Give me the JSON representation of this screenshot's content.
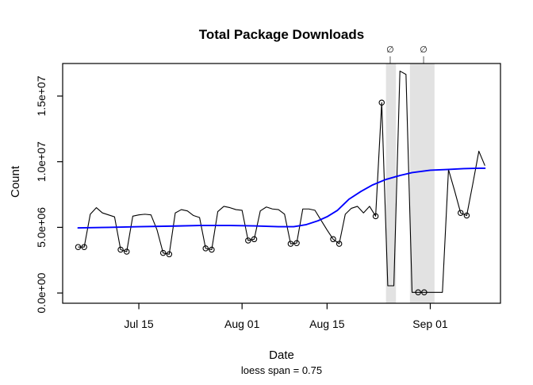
{
  "chart_data": {
    "type": "line",
    "title": "Total Package Downloads",
    "xlabel": "Date",
    "ylabel": "Count",
    "subtitle": "loess span = 0.75",
    "grid": false,
    "legend": "none",
    "x_tick_labels": [
      "Jul 15",
      "Aug 01",
      "Aug 15",
      "Sep 01"
    ],
    "x_tick_day_index": [
      10,
      27,
      41,
      58
    ],
    "y_ticks": [
      0,
      5000000,
      10000000,
      15000000
    ],
    "y_tick_labels": [
      "0.0e+00",
      "5.0e+06",
      "1.0e+07",
      "1.5e+07"
    ],
    "ylim": [
      0,
      17500000
    ],
    "points_columns": [
      "date",
      "value",
      "circled"
    ],
    "points": [
      [
        "Jul 05",
        3500000,
        true
      ],
      [
        "Jul 06",
        3500000,
        true
      ],
      [
        "Jul 07",
        6000000,
        false
      ],
      [
        "Jul 08",
        6500000,
        false
      ],
      [
        "Jul 09",
        6100000,
        false
      ],
      [
        "Jul 10",
        5950000,
        false
      ],
      [
        "Jul 11",
        5800000,
        false
      ],
      [
        "Jul 12",
        3300000,
        true
      ],
      [
        "Jul 13",
        3150000,
        true
      ],
      [
        "Jul 14",
        5850000,
        false
      ],
      [
        "Jul 15",
        5950000,
        false
      ],
      [
        "Jul 16",
        6000000,
        false
      ],
      [
        "Jul 17",
        5950000,
        false
      ],
      [
        "Jul 18",
        4800000,
        false
      ],
      [
        "Jul 19",
        3050000,
        true
      ],
      [
        "Jul 20",
        2950000,
        true
      ],
      [
        "Jul 21",
        6100000,
        false
      ],
      [
        "Jul 22",
        6350000,
        false
      ],
      [
        "Jul 23",
        6250000,
        false
      ],
      [
        "Jul 24",
        5900000,
        false
      ],
      [
        "Jul 25",
        5750000,
        false
      ],
      [
        "Jul 26",
        3400000,
        true
      ],
      [
        "Jul 27",
        3300000,
        true
      ],
      [
        "Jul 28",
        6200000,
        false
      ],
      [
        "Jul 29",
        6600000,
        false
      ],
      [
        "Jul 30",
        6500000,
        false
      ],
      [
        "Jul 31",
        6350000,
        false
      ],
      [
        "Aug 01",
        6300000,
        false
      ],
      [
        "Aug 02",
        4000000,
        true
      ],
      [
        "Aug 03",
        4100000,
        true
      ],
      [
        "Aug 04",
        6250000,
        false
      ],
      [
        "Aug 05",
        6550000,
        false
      ],
      [
        "Aug 06",
        6400000,
        false
      ],
      [
        "Aug 07",
        6350000,
        false
      ],
      [
        "Aug 08",
        6000000,
        false
      ],
      [
        "Aug 09",
        3750000,
        true
      ],
      [
        "Aug 10",
        3800000,
        true
      ],
      [
        "Aug 11",
        6400000,
        false
      ],
      [
        "Aug 12",
        6400000,
        false
      ],
      [
        "Aug 13",
        6300000,
        false
      ],
      [
        "Aug 14",
        5550000,
        false
      ],
      [
        "Aug 15",
        4800000,
        false
      ],
      [
        "Aug 16",
        4100000,
        true
      ],
      [
        "Aug 17",
        3750000,
        true
      ],
      [
        "Aug 18",
        6000000,
        false
      ],
      [
        "Aug 19",
        6450000,
        false
      ],
      [
        "Aug 20",
        6600000,
        false
      ],
      [
        "Aug 21",
        6100000,
        false
      ],
      [
        "Aug 22",
        6600000,
        false
      ],
      [
        "Aug 23",
        5850000,
        true
      ],
      [
        "Aug 24",
        14500000,
        true
      ],
      [
        "Aug 25",
        550000,
        false
      ],
      [
        "Aug 26",
        550000,
        false
      ],
      [
        "Aug 27",
        16900000,
        false
      ],
      [
        "Aug 28",
        16650000,
        false
      ],
      [
        "Aug 29",
        50000,
        false
      ],
      [
        "Aug 30",
        50000,
        true
      ],
      [
        "Aug 31",
        50000,
        true
      ],
      [
        "Sep 01",
        50000,
        false
      ],
      [
        "Sep 02",
        50000,
        false
      ],
      [
        "Sep 03",
        50000,
        false
      ],
      [
        "Sep 04",
        9400000,
        false
      ],
      [
        "Sep 05",
        7800000,
        false
      ],
      [
        "Sep 06",
        6100000,
        true
      ],
      [
        "Sep 07",
        5900000,
        true
      ],
      [
        "Sep 08",
        8300000,
        false
      ],
      [
        "Sep 09",
        10800000,
        false
      ],
      [
        "Sep 10",
        9700000,
        false
      ]
    ],
    "loess": {
      "span": 0.75,
      "points_columns": [
        "day_index",
        "value"
      ],
      "points": [
        [
          0,
          4960000
        ],
        [
          5,
          5000000
        ],
        [
          10,
          5050000
        ],
        [
          16,
          5100000
        ],
        [
          20,
          5140000
        ],
        [
          25,
          5140000
        ],
        [
          29,
          5110000
        ],
        [
          33,
          5050000
        ],
        [
          35.5,
          5050000
        ],
        [
          37.5,
          5200000
        ],
        [
          39.5,
          5500000
        ],
        [
          41,
          5810000
        ],
        [
          42.7,
          6290000
        ],
        [
          44.6,
          7140000
        ],
        [
          46.6,
          7740000
        ],
        [
          48.5,
          8230000
        ],
        [
          50.7,
          8650000
        ],
        [
          53,
          8950000
        ],
        [
          55,
          9170000
        ],
        [
          58,
          9350000
        ],
        [
          61,
          9410000
        ],
        [
          63.5,
          9470000
        ],
        [
          66,
          9500000
        ],
        [
          67,
          9500000
        ]
      ]
    },
    "missing_data_bands": [
      {
        "from_day_index": 50.7,
        "to_day_index": 52.35,
        "marker": "∅",
        "marker_day_index": 51.4
      },
      {
        "from_day_index": 54.65,
        "to_day_index": 58.7,
        "marker": "∅",
        "marker_day_index": 56.9
      }
    ],
    "colors": {
      "series": "#000000",
      "loess": "#0000ff",
      "band": "#e2e2e2",
      "null_marker": "#7a7a7a",
      "background": "#ffffff"
    }
  }
}
